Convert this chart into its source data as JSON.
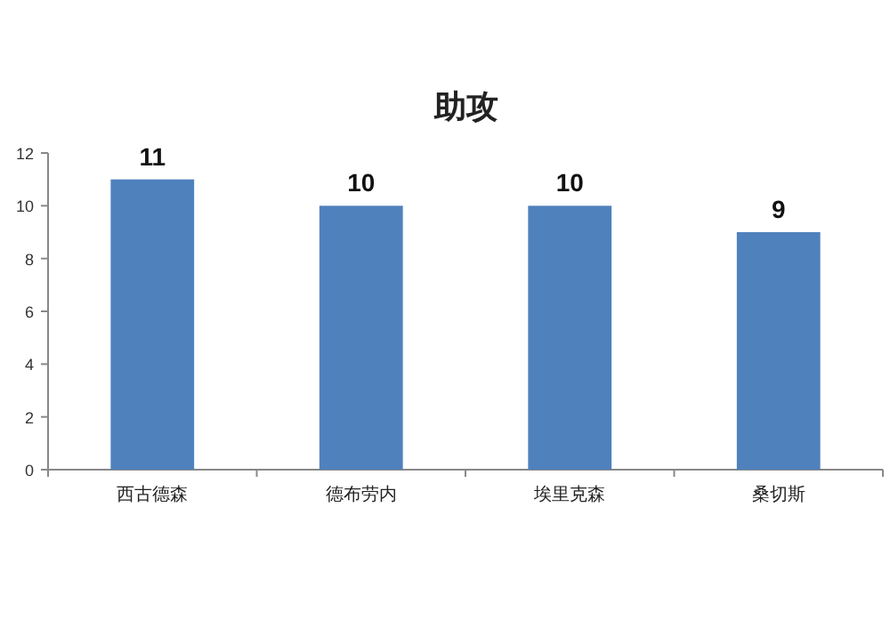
{
  "chart_data": {
    "type": "bar",
    "title": "助攻",
    "categories": [
      "西古德森",
      "德布劳内",
      "埃里克森",
      "桑切斯"
    ],
    "values": [
      11,
      10,
      10,
      9
    ],
    "color": "#4f81bd",
    "ylim": [
      0,
      12
    ],
    "yticks": [
      0,
      2,
      4,
      6,
      8,
      10,
      12
    ],
    "grid": false,
    "data_labels": true
  }
}
